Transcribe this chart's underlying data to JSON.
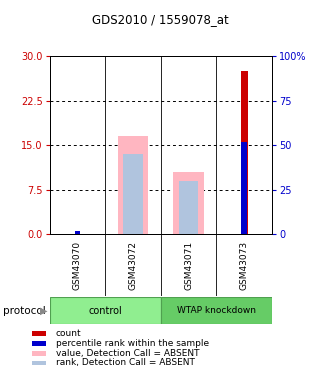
{
  "title": "GDS2010 / 1559078_at",
  "samples": [
    "GSM43070",
    "GSM43072",
    "GSM43071",
    "GSM43073"
  ],
  "left_ylim": [
    0,
    30
  ],
  "right_ylim": [
    0,
    100
  ],
  "left_yticks": [
    0,
    7.5,
    15,
    22.5,
    30
  ],
  "right_yticks": [
    0,
    25,
    50,
    75,
    100
  ],
  "right_yticklabels": [
    "0",
    "25",
    "50",
    "75",
    "100%"
  ],
  "left_tick_color": "#cc0000",
  "right_tick_color": "#0000cc",
  "red_bars_values": [
    0,
    0,
    0,
    27.5
  ],
  "red_bar_color": "#cc0000",
  "blue_bars_values": [
    0.5,
    0,
    0,
    15.5
  ],
  "blue_bar_color": "#0000cc",
  "pink_bars_values": [
    0,
    16.5,
    10.5,
    0
  ],
  "pink_bar_color": "#FFB6C1",
  "lavender_bars_values": [
    0,
    13.5,
    9.0,
    0
  ],
  "lavender_bar_color": "#b0c4de",
  "grid_lines": [
    7.5,
    15,
    22.5
  ],
  "legend_items": [
    {
      "label": "count",
      "color": "#cc0000"
    },
    {
      "label": "percentile rank within the sample",
      "color": "#0000cc"
    },
    {
      "label": "value, Detection Call = ABSENT",
      "color": "#FFB6C1"
    },
    {
      "label": "rank, Detection Call = ABSENT",
      "color": "#b0c4de"
    }
  ],
  "background_color": "#ffffff",
  "plot_bg_color": "#ffffff",
  "label_bg_color": "#c8c8c8",
  "control_color": "#90EE90",
  "knockdown_color": "#66CC66"
}
